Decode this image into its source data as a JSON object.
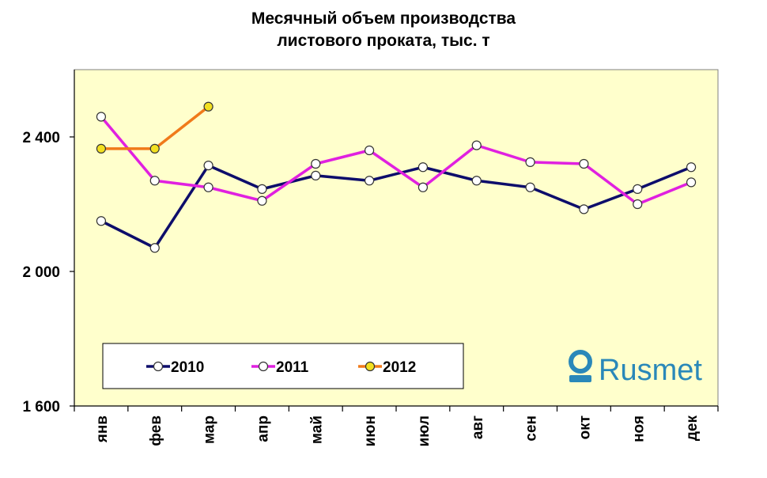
{
  "chart_data": {
    "type": "line",
    "title_lines": [
      "Месячный объем производства",
      "листового проката, тыс. т"
    ],
    "categories": [
      "янв",
      "фев",
      "мар",
      "апр",
      "май",
      "июн",
      "июл",
      "авг",
      "сен",
      "окт",
      "ноя",
      "дек"
    ],
    "ylim": [
      1600,
      2600
    ],
    "yticks": [
      1600,
      2000,
      2400
    ],
    "ytick_labels": [
      "1 600",
      "2 000",
      "2 400"
    ],
    "grid": false,
    "legend_position": "bottom-left",
    "series": [
      {
        "name": "2010",
        "color": "#0d0d6b",
        "marker_fill": "#ffffff",
        "values": [
          2150,
          2070,
          2315,
          2245,
          2285,
          2270,
          2310,
          2270,
          2250,
          2185,
          2245,
          2310
        ]
      },
      {
        "name": "2011",
        "color": "#e020e0",
        "marker_fill": "#ffffff",
        "values": [
          2460,
          2270,
          2250,
          2210,
          2320,
          2360,
          2250,
          2375,
          2325,
          2320,
          2200,
          2265
        ]
      },
      {
        "name": "2012",
        "color": "#f07a1a",
        "marker_fill": "#f2e020",
        "values": [
          2365,
          2365,
          2490,
          null,
          null,
          null,
          null,
          null,
          null,
          null,
          null,
          null
        ]
      }
    ],
    "plot_bg": "#ffffcc"
  },
  "brand": {
    "name": "Rusmet",
    "icon": "rusmet-logo-icon",
    "color": "#2a88b9"
  }
}
